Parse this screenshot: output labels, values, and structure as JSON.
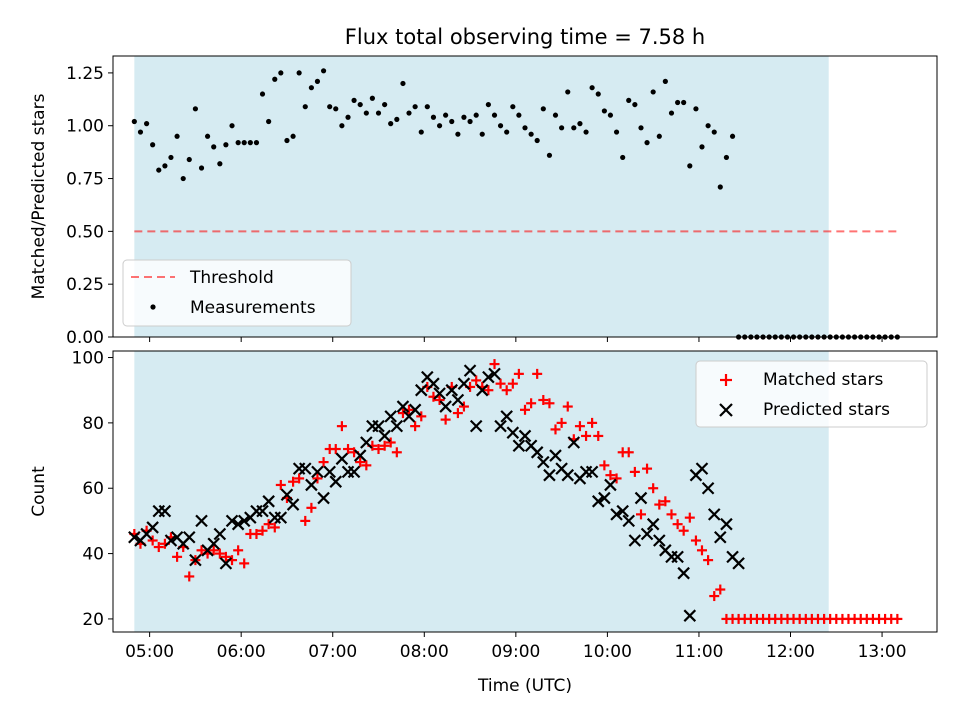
{
  "chart_data": [
    {
      "type": "scatter",
      "title": "Flux total observing time = 7.58 h",
      "xlabel": "",
      "ylabel": "Matched/Predicted stars",
      "xlim": [
        4.6,
        13.6
      ],
      "ylim": [
        0,
        1.33
      ],
      "yticks": [
        0,
        0.25,
        0.5,
        0.75,
        1.0,
        1.25
      ],
      "ytick_labels": [
        "0.00",
        "0.25",
        "0.50",
        "0.75",
        "1.00",
        "1.25"
      ],
      "observing_window": [
        4.833,
        12.417
      ],
      "threshold": {
        "name": "Threshold",
        "value": 0.5,
        "x_range": [
          4.833,
          13.2
        ]
      },
      "legend_position": "lower-left",
      "series": [
        {
          "name": "Measurements",
          "x": [
            4.833,
            4.9,
            4.967,
            5.033,
            5.1,
            5.167,
            5.233,
            5.3,
            5.367,
            5.433,
            5.5,
            5.567,
            5.633,
            5.7,
            5.767,
            5.833,
            5.9,
            5.967,
            6.033,
            6.1,
            6.167,
            6.233,
            6.3,
            6.367,
            6.433,
            6.5,
            6.567,
            6.633,
            6.7,
            6.767,
            6.833,
            6.9,
            6.967,
            7.033,
            7.1,
            7.167,
            7.233,
            7.3,
            7.367,
            7.433,
            7.5,
            7.567,
            7.633,
            7.7,
            7.767,
            7.833,
            7.9,
            7.967,
            8.033,
            8.1,
            8.167,
            8.233,
            8.3,
            8.367,
            8.433,
            8.5,
            8.567,
            8.633,
            8.7,
            8.767,
            8.833,
            8.9,
            8.967,
            9.033,
            9.1,
            9.167,
            9.233,
            9.3,
            9.367,
            9.433,
            9.5,
            9.567,
            9.633,
            9.7,
            9.767,
            9.833,
            9.9,
            9.967,
            10.033,
            10.1,
            10.167,
            10.233,
            10.3,
            10.367,
            10.433,
            10.5,
            10.567,
            10.633,
            10.7,
            10.767,
            10.833,
            10.9,
            10.967,
            11.033,
            11.1,
            11.167,
            11.233,
            11.3,
            11.367,
            11.433,
            11.5,
            11.567,
            11.633,
            11.7,
            11.767,
            11.833,
            11.9,
            11.967,
            12.033,
            12.1,
            12.167,
            12.233,
            12.3,
            12.367,
            12.433,
            12.5,
            12.567,
            12.633,
            12.7,
            12.767,
            12.833,
            12.9,
            12.967,
            13.033,
            13.1,
            13.167
          ],
          "y": [
            1.02,
            0.97,
            1.01,
            0.91,
            0.79,
            0.81,
            0.85,
            0.95,
            0.75,
            0.84,
            1.08,
            0.8,
            0.95,
            0.9,
            0.82,
            0.91,
            1.0,
            0.92,
            0.92,
            0.92,
            0.92,
            1.15,
            1.02,
            1.22,
            1.25,
            0.93,
            0.95,
            1.25,
            1.09,
            1.18,
            1.21,
            1.26,
            1.09,
            1.08,
            1.0,
            1.04,
            1.12,
            1.1,
            1.06,
            1.13,
            1.06,
            1.1,
            1.01,
            1.03,
            1.2,
            1.06,
            1.09,
            0.97,
            1.09,
            1.04,
            1.0,
            1.05,
            1.02,
            0.96,
            1.04,
            1.02,
            1.05,
            0.96,
            1.1,
            1.05,
            1.0,
            0.97,
            1.09,
            1.05,
            0.99,
            0.96,
            0.93,
            1.08,
            0.86,
            1.05,
            0.99,
            1.16,
            0.99,
            1.01,
            0.97,
            1.18,
            1.15,
            1.07,
            1.05,
            0.97,
            0.85,
            1.12,
            1.1,
            0.99,
            0.92,
            1.16,
            0.95,
            1.21,
            1.06,
            1.11,
            1.11,
            0.81,
            1.08,
            0.9,
            1.0,
            0.97,
            0.71,
            0.85,
            0.95,
            0.0,
            0.0,
            0.0,
            0.0,
            0.0,
            0.0,
            0.0,
            0.0,
            0.0,
            0.0,
            0.0,
            0.0,
            0.0,
            0.0,
            0.0,
            0.0,
            0.0,
            0.0,
            0.0,
            0.0,
            0.0,
            0.0,
            0.0,
            0.0,
            0.0,
            0.0,
            0.0
          ]
        }
      ]
    },
    {
      "type": "scatter",
      "title": "",
      "xlabel": "Time (UTC)",
      "ylabel": "Count",
      "xlim": [
        4.6,
        13.6
      ],
      "ylim": [
        16,
        102
      ],
      "yticks": [
        20,
        40,
        60,
        80,
        100
      ],
      "ytick_labels": [
        "20",
        "40",
        "60",
        "80",
        "100"
      ],
      "xticks": [
        5,
        6,
        7,
        8,
        9,
        10,
        11,
        12,
        13
      ],
      "xtick_labels": [
        "05:00",
        "06:00",
        "07:00",
        "08:00",
        "09:00",
        "10:00",
        "11:00",
        "12:00",
        "13:00"
      ],
      "observing_window": [
        4.833,
        12.417
      ],
      "legend_position": "upper-right",
      "series": [
        {
          "name": "Matched stars",
          "marker": "plus",
          "color": "#ff0000",
          "x": [
            4.833,
            4.9,
            4.967,
            5.033,
            5.1,
            5.167,
            5.233,
            5.3,
            5.367,
            5.433,
            5.5,
            5.567,
            5.633,
            5.7,
            5.767,
            5.833,
            5.9,
            5.967,
            6.033,
            6.1,
            6.167,
            6.233,
            6.3,
            6.367,
            6.433,
            6.5,
            6.567,
            6.633,
            6.7,
            6.767,
            6.833,
            6.9,
            6.967,
            7.033,
            7.1,
            7.167,
            7.233,
            7.3,
            7.367,
            7.433,
            7.5,
            7.567,
            7.633,
            7.7,
            7.767,
            7.833,
            7.9,
            7.967,
            8.033,
            8.1,
            8.167,
            8.233,
            8.3,
            8.367,
            8.433,
            8.5,
            8.567,
            8.633,
            8.7,
            8.767,
            8.833,
            8.9,
            8.967,
            9.033,
            9.1,
            9.167,
            9.233,
            9.3,
            9.367,
            9.433,
            9.5,
            9.567,
            9.633,
            9.7,
            9.767,
            9.833,
            9.9,
            9.967,
            10.033,
            10.1,
            10.167,
            10.233,
            10.3,
            10.367,
            10.433,
            10.5,
            10.567,
            10.633,
            10.7,
            10.767,
            10.833,
            10.9,
            10.967,
            11.033,
            11.1,
            11.167,
            11.233,
            11.3,
            11.367,
            11.433,
            11.5,
            11.567,
            11.633,
            11.7,
            11.767,
            11.833,
            11.9,
            11.967,
            12.033,
            12.1,
            12.167,
            12.233,
            12.3,
            12.367,
            12.433,
            12.5,
            12.567,
            12.633,
            12.7,
            12.767,
            12.833,
            12.9,
            12.967,
            13.033,
            13.1,
            13.167
          ],
          "y": [
            46,
            43,
            47,
            44,
            42,
            43,
            45,
            39,
            42,
            33,
            38,
            41,
            40,
            41,
            40,
            39,
            38,
            41,
            37,
            46,
            46,
            47,
            49,
            48,
            61,
            57,
            62,
            63,
            50,
            54,
            63,
            68,
            72,
            72,
            79,
            72,
            71,
            68,
            67,
            73,
            72,
            73,
            74,
            71,
            83,
            84,
            79,
            82,
            91,
            88,
            87,
            81,
            91,
            83,
            85,
            91,
            93,
            91,
            90,
            98,
            92,
            90,
            92,
            95,
            84,
            86,
            95,
            87,
            86,
            78,
            80,
            85,
            75,
            79,
            76,
            80,
            76,
            67,
            64,
            63,
            71,
            71,
            65,
            52,
            66,
            60,
            55,
            56,
            52,
            49,
            47,
            51,
            44,
            41,
            38,
            27,
            29,
            20,
            20,
            20,
            20,
            20,
            20,
            20,
            20,
            20,
            20,
            20,
            20,
            20,
            20,
            20,
            20,
            20,
            20,
            20,
            20,
            20,
            20,
            20,
            20,
            20,
            20,
            20,
            20,
            20
          ]
        },
        {
          "name": "Predicted stars",
          "marker": "x",
          "color": "#000000",
          "x": [
            4.833,
            4.9,
            4.967,
            5.033,
            5.1,
            5.167,
            5.233,
            5.3,
            5.367,
            5.433,
            5.5,
            5.567,
            5.633,
            5.7,
            5.767,
            5.833,
            5.9,
            5.967,
            6.033,
            6.1,
            6.167,
            6.233,
            6.3,
            6.367,
            6.433,
            6.5,
            6.567,
            6.633,
            6.7,
            6.767,
            6.833,
            6.9,
            6.967,
            7.033,
            7.1,
            7.167,
            7.233,
            7.3,
            7.367,
            7.433,
            7.5,
            7.567,
            7.633,
            7.7,
            7.767,
            7.833,
            7.9,
            7.967,
            8.033,
            8.1,
            8.167,
            8.233,
            8.3,
            8.367,
            8.433,
            8.5,
            8.567,
            8.633,
            8.7,
            8.767,
            8.833,
            8.9,
            8.967,
            9.033,
            9.1,
            9.167,
            9.233,
            9.3,
            9.367,
            9.433,
            9.5,
            9.567,
            9.633,
            9.7,
            9.767,
            9.833,
            9.9,
            9.967,
            10.033,
            10.1,
            10.167,
            10.233,
            10.3,
            10.367,
            10.433,
            10.5,
            10.567,
            10.633,
            10.7,
            10.767,
            10.833,
            10.9,
            10.967,
            11.033,
            11.1,
            11.167,
            11.233,
            11.3,
            11.367,
            11.433
          ],
          "y": [
            45,
            44,
            46,
            48,
            53,
            53,
            44,
            45,
            43,
            45,
            38,
            50,
            41,
            43,
            46,
            37,
            50,
            49,
            50,
            51,
            53,
            53,
            56,
            51,
            51,
            58,
            55,
            66,
            66,
            61,
            65,
            57,
            65,
            62,
            69,
            65,
            65,
            70,
            74,
            79,
            79,
            76,
            82,
            79,
            85,
            82,
            84,
            90,
            94,
            92,
            89,
            85,
            90,
            87,
            92,
            96,
            79,
            90,
            94,
            95,
            79,
            82,
            77,
            73,
            76,
            73,
            71,
            68,
            64,
            70,
            66,
            64,
            74,
            63,
            65,
            65,
            56,
            57,
            61,
            52,
            53,
            50,
            44,
            57,
            46,
            49,
            44,
            41,
            39,
            39,
            34,
            21,
            64,
            66,
            60,
            52,
            45,
            49,
            39,
            37
          ]
        }
      ]
    }
  ]
}
